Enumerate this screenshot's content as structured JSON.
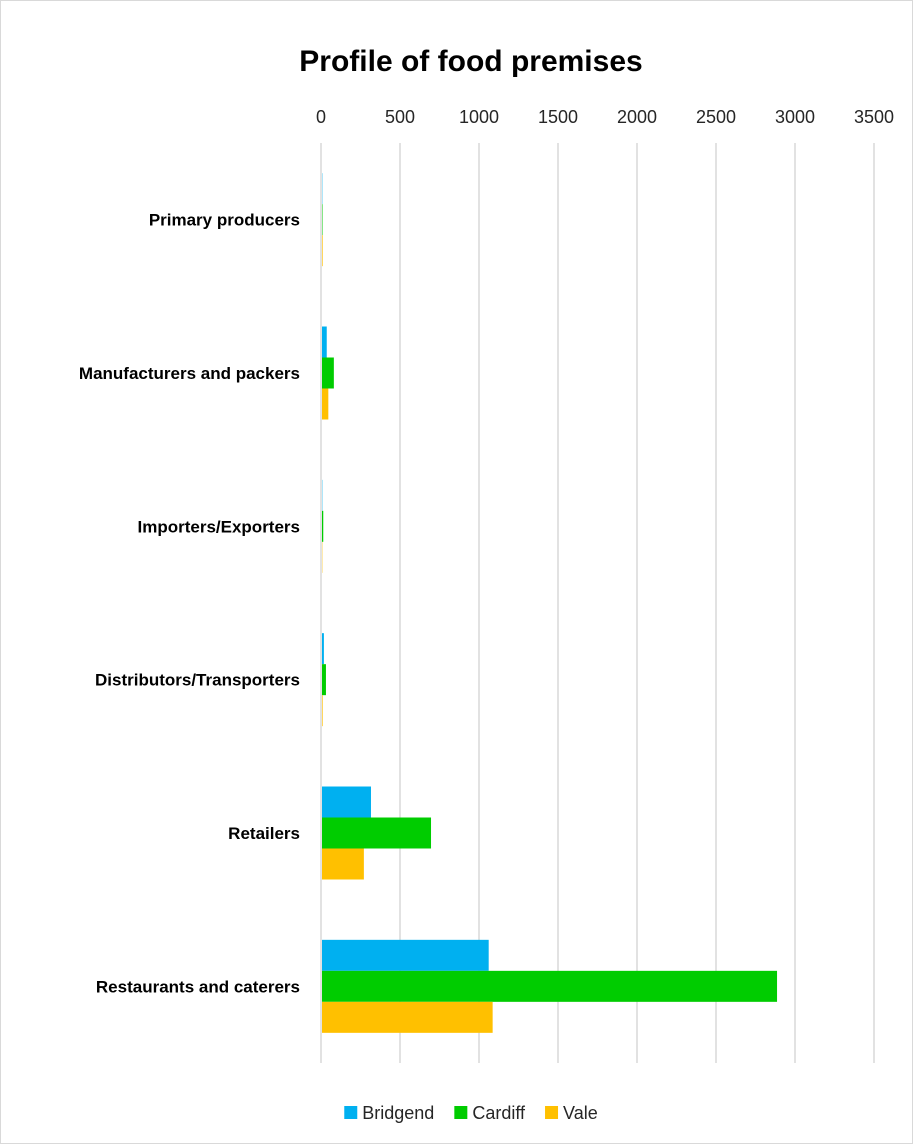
{
  "chart_data": {
    "type": "bar",
    "orientation": "horizontal",
    "title": "Profile of food premises",
    "xlabel": "",
    "ylabel": "",
    "xlim": [
      0,
      3500
    ],
    "x_ticks": [
      "0",
      "500",
      "1000",
      "1500",
      "2000",
      "2500",
      "3000",
      "3500"
    ],
    "grid": true,
    "legend_position": "bottom",
    "categories": [
      "Primary producers",
      "Manufacturers and packers",
      "Importers/Exporters",
      "Distributors/Transporters",
      "Retailers",
      "Restaurants and caterers"
    ],
    "series": [
      {
        "name": "Bridgend",
        "color": "#00b0f0",
        "values": [
          2,
          30,
          2,
          12,
          310,
          1055
        ]
      },
      {
        "name": "Cardiff",
        "color": "#00cc00",
        "values": [
          3,
          75,
          8,
          25,
          690,
          2880
        ]
      },
      {
        "name": "Vale",
        "color": "#ffc000",
        "values": [
          4,
          40,
          2,
          4,
          265,
          1080
        ]
      }
    ]
  }
}
